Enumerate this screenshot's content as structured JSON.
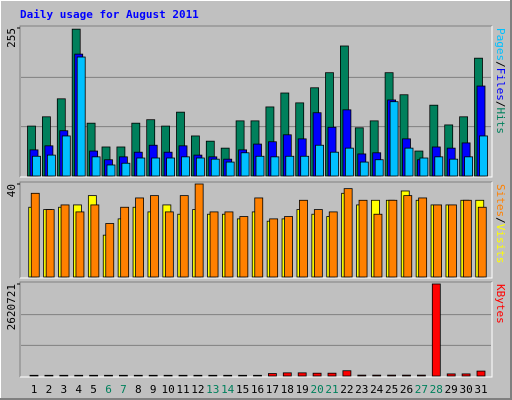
{
  "chart_data": [
    {
      "type": "bar",
      "title": "Daily usage for August 2011",
      "categories": [
        "1",
        "2",
        "3",
        "4",
        "5",
        "6",
        "7",
        "8",
        "9",
        "10",
        "11",
        "12",
        "13",
        "14",
        "15",
        "16",
        "17",
        "18",
        "19",
        "20",
        "21",
        "22",
        "23",
        "24",
        "25",
        "26",
        "27",
        "28",
        "29",
        "30",
        "31"
      ],
      "ylim": [
        0,
        255
      ],
      "yticks": [
        255
      ],
      "legend_separator": "/",
      "series": [
        {
          "name": "Hits",
          "color": "#00805c",
          "values": [
            86,
            102,
            133,
            253,
            91,
            50,
            50,
            91,
            97,
            86,
            110,
            69,
            60,
            48,
            95,
            95,
            119,
            143,
            126,
            152,
            178,
            224,
            83,
            95,
            178,
            140,
            43,
            122,
            88,
            102,
            203
          ]
        },
        {
          "name": "Files",
          "color": "#0000ff",
          "values": [
            45,
            52,
            78,
            210,
            43,
            28,
            33,
            41,
            53,
            41,
            52,
            36,
            33,
            29,
            45,
            55,
            59,
            71,
            64,
            109,
            84,
            114,
            38,
            40,
            131,
            64,
            28,
            50,
            48,
            57,
            155
          ]
        },
        {
          "name": "Pages",
          "color": "#00c0ff",
          "values": [
            34,
            36,
            69,
            205,
            33,
            19,
            22,
            31,
            31,
            31,
            33,
            31,
            29,
            24,
            40,
            34,
            33,
            34,
            34,
            53,
            41,
            48,
            24,
            28,
            128,
            48,
            31,
            33,
            29,
            33,
            69
          ]
        }
      ]
    },
    {
      "type": "bar",
      "categories": [
        "1",
        "2",
        "3",
        "4",
        "5",
        "6",
        "7",
        "8",
        "9",
        "10",
        "11",
        "12",
        "13",
        "14",
        "15",
        "16",
        "17",
        "18",
        "19",
        "20",
        "21",
        "22",
        "23",
        "24",
        "25",
        "26",
        "27",
        "28",
        "29",
        "30",
        "31"
      ],
      "ylim": [
        0,
        40
      ],
      "yticks": [
        40
      ],
      "legend_separator": "/",
      "series": [
        {
          "name": "Visits",
          "color": "#ffff00",
          "values": [
            30,
            29,
            30,
            31,
            35,
            18,
            25,
            30,
            28,
            31,
            27,
            29,
            27,
            27,
            25,
            28,
            24,
            25,
            29,
            27,
            26,
            36,
            31,
            33,
            33,
            37,
            33,
            31,
            31,
            33,
            33
          ]
        },
        {
          "name": "Sites",
          "color": "#ff8000",
          "values": [
            36,
            29,
            31,
            28,
            31,
            23,
            30,
            34,
            35,
            28,
            35,
            40,
            28,
            28,
            26,
            34,
            25,
            26,
            33,
            29,
            28,
            38,
            33,
            27,
            33,
            35,
            34,
            31,
            31,
            33,
            30
          ]
        }
      ]
    },
    {
      "type": "bar",
      "categories": [
        "1",
        "2",
        "3",
        "4",
        "5",
        "6",
        "7",
        "8",
        "9",
        "10",
        "11",
        "12",
        "13",
        "14",
        "15",
        "16",
        "17",
        "18",
        "19",
        "20",
        "21",
        "22",
        "23",
        "24",
        "25",
        "26",
        "27",
        "28",
        "29",
        "30",
        "31"
      ],
      "xtick_colors": [
        "#000000",
        "#000000",
        "#000000",
        "#000000",
        "#000000",
        "#00805c",
        "#00805c",
        "#000000",
        "#000000",
        "#000000",
        "#000000",
        "#000000",
        "#00805c",
        "#00805c",
        "#000000",
        "#000000",
        "#000000",
        "#000000",
        "#000000",
        "#00805c",
        "#00805c",
        "#000000",
        "#000000",
        "#000000",
        "#000000",
        "#000000",
        "#00805c",
        "#00805c",
        "#000000",
        "#000000",
        "#000000"
      ],
      "ylim": [
        0,
        2620721
      ],
      "yticks": [
        2620721
      ],
      "series": [
        {
          "name": "KBytes",
          "color": "#ff0000",
          "values": [
            20000,
            20000,
            20000,
            20000,
            20000,
            20000,
            20000,
            20000,
            20000,
            20000,
            20000,
            20000,
            20000,
            20000,
            20000,
            20000,
            70000,
            90000,
            90000,
            80000,
            80000,
            150000,
            25000,
            25000,
            25000,
            25000,
            25000,
            2620721,
            60000,
            60000,
            140000
          ]
        }
      ]
    }
  ]
}
